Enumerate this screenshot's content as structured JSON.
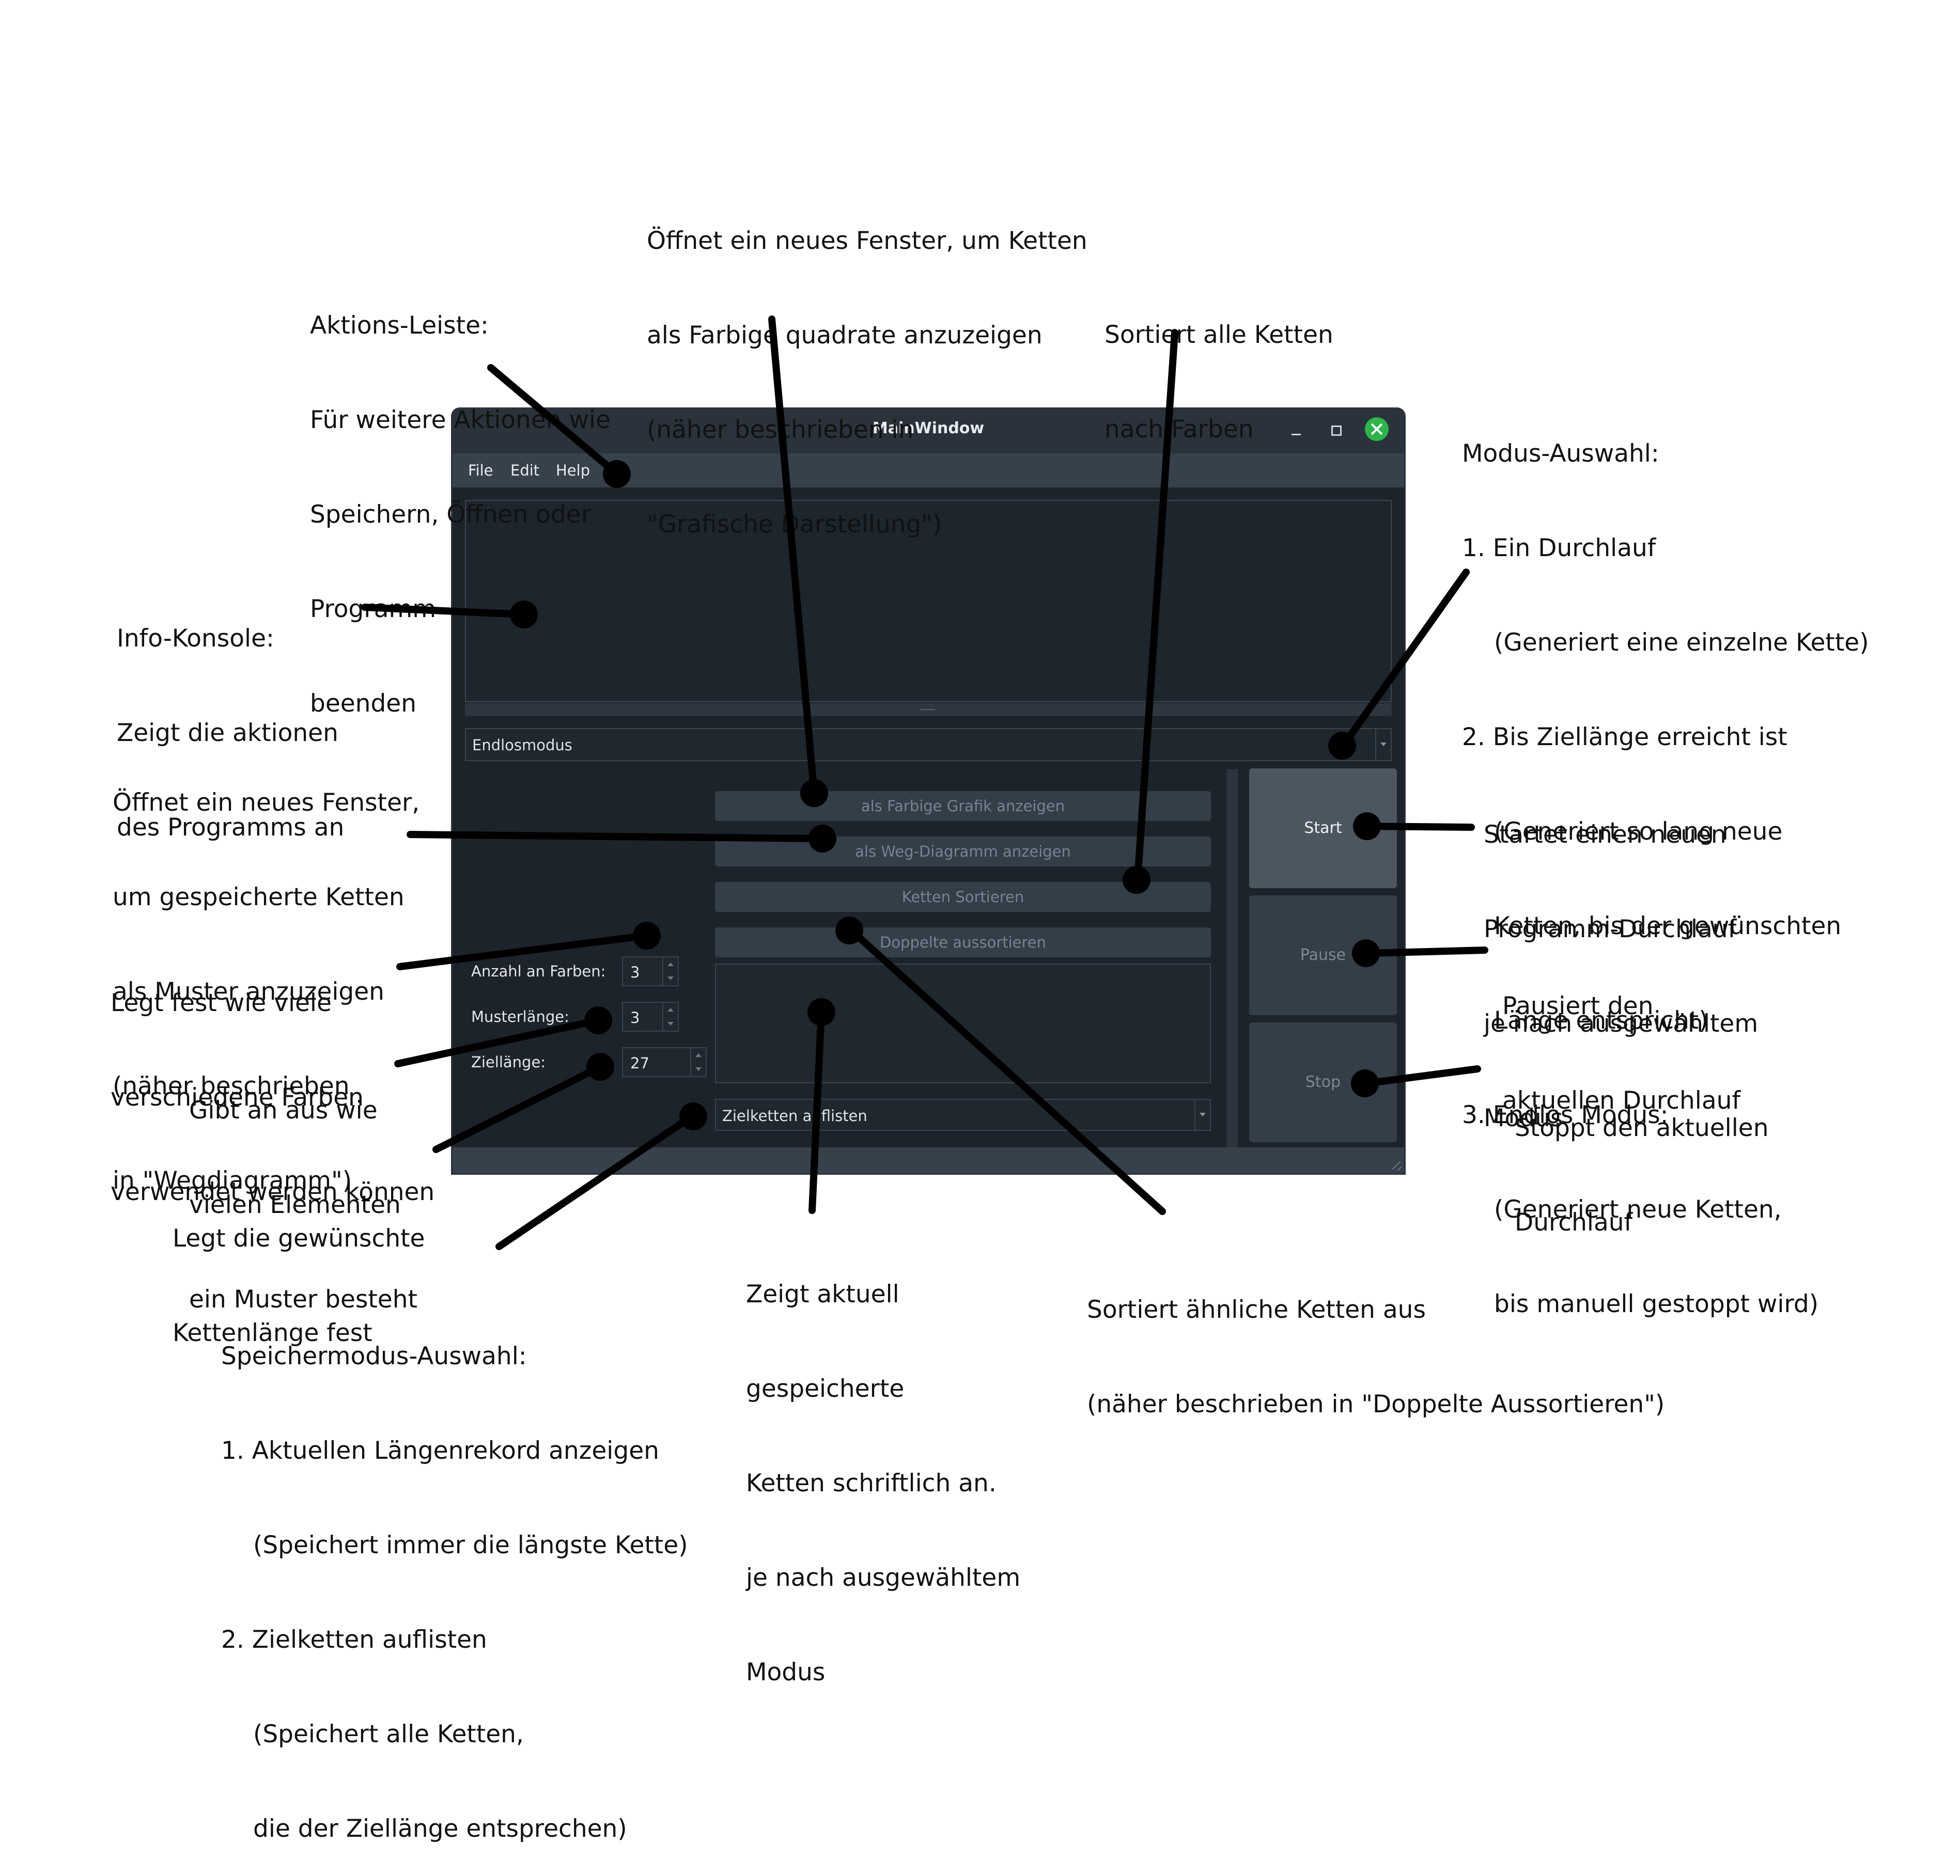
{
  "window": {
    "title": "MainWindow",
    "menu": [
      "File",
      "Edit",
      "Help"
    ],
    "mode_select": "Endlosmodus",
    "buttons": {
      "color_graphic": "als Farbige Grafik anzeigen",
      "path_diagram": "als Weg-Diagramm anzeigen",
      "sort_chains": "Ketten Sortieren",
      "remove_duplicates": "Doppelte aussortieren",
      "start": "Start",
      "pause": "Pause",
      "stop": "Stop"
    },
    "fields": {
      "color_count_label": "Anzahl an Farben:",
      "color_count_value": "3",
      "pattern_length_label": "Musterlänge:",
      "pattern_length_value": "3",
      "target_length_label": "Ziellänge:",
      "target_length_value": "27"
    },
    "save_select": "Zielketten auflisten"
  },
  "annotations": {
    "action_bar": [
      "Aktions-Leiste:",
      "Für weitere Aktionen wie",
      "Speichern, Öffnen oder",
      "Programm",
      "beenden"
    ],
    "color_window": [
      "Öffnet ein neues Fenster, um Ketten",
      "als Farbige quadrate anzuzeigen",
      "(näher beschrieben in",
      "\"Grafische Darstellung\")"
    ],
    "sort_colors": [
      "Sortiert alle Ketten",
      "nach Farben"
    ],
    "mode_select": {
      "heading": "Modus-Auswahl:",
      "item1": "1. Ein Durchlauf",
      "item1_desc": [
        "(Generiert eine einzelne Kette)"
      ],
      "item2": "2. Bis Ziellänge erreicht ist",
      "item2_desc": [
        "(Generiert so lang neue",
        "Ketten, bis der gewünschten",
        "Länge entspricht)"
      ],
      "item3": "3. Endlos Modus:",
      "item3_desc": [
        "(Generiert neue Ketten,",
        "bis manuell gestoppt wird)"
      ]
    },
    "info_console": [
      "Info-Konsole:",
      "Zeigt die aktionen",
      "des Programms an"
    ],
    "path_window": [
      "Öffnet ein neues Fenster,",
      "um gespeicherte Ketten",
      "als Muster anzuzeigen",
      "(näher beschrieben",
      "in \"Wegdiagramm\")"
    ],
    "start": [
      "Startet einen neuen",
      "Programm-Durchlauf",
      "je nach ausgewähltem",
      "Modus"
    ],
    "color_count": [
      "Legt fest wie viele",
      "verschiedene Farben",
      "verwendet werden können"
    ],
    "pause": [
      "Pausiert den",
      "aktuellen Durchlauf"
    ],
    "pattern_length": [
      "Gibt an aus wie",
      "vielen Elementen",
      "ein Muster besteht"
    ],
    "stop": [
      "Stoppt den aktuellen",
      "Durchlauf"
    ],
    "target_length": [
      "Legt die gewünschte",
      "Kettenlänge fest"
    ],
    "stored_chains": [
      "Zeigt aktuell",
      "gespeicherte",
      "Ketten schriftlich an.",
      "je nach ausgewähltem",
      "Modus"
    ],
    "duplicates": [
      "Sortiert ähnliche Ketten aus",
      "(näher beschrieben in \"Doppelte Aussortieren\")"
    ],
    "save_mode": {
      "heading": "Speichermodus-Auswahl:",
      "item1": "1. Aktuellen Längenrekord anzeigen",
      "item1_desc": [
        "(Speichert immer die längste Kette)"
      ],
      "item2": "2. Zielketten auflisten",
      "item2_desc": [
        "(Speichert alle Ketten,",
        "die der Ziellänge entsprechen)"
      ]
    }
  }
}
